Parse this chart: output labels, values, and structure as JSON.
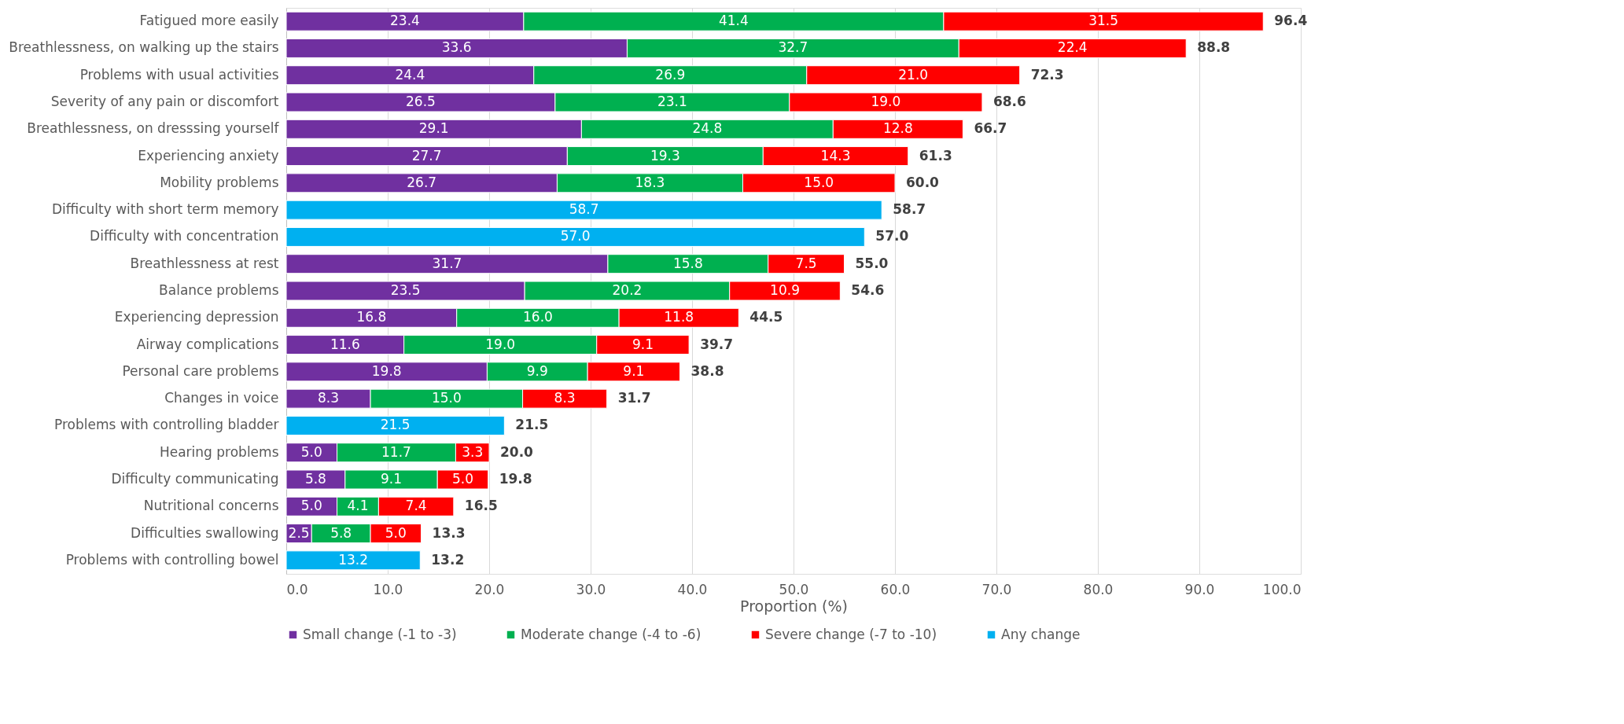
{
  "chart_data": {
    "type": "bar",
    "orientation": "horizontal",
    "stacked": true,
    "categories": [
      "Fatigued more easily",
      "Breathlessness, on walking up the stairs",
      "Problems with usual activities",
      "Severity of any pain or discomfort",
      "Breathlessness, on dresssing yourself",
      "Experiencing anxiety",
      "Mobility problems",
      "Difficulty with short term memory",
      "Difficulty with concentration",
      "Breathlessness at rest",
      "Balance problems",
      "Experiencing depression",
      "Airway complications",
      "Personal care problems",
      "Changes in voice",
      "Problems with controlling bladder",
      "Hearing problems",
      "Difficulty communicating",
      "Nutritional concerns",
      "Difficulties swallowing",
      "Problems with controlling bowel"
    ],
    "series": [
      {
        "name": "Small change (-1 to -3)",
        "color": "#7030a0",
        "values": [
          23.4,
          33.6,
          24.4,
          26.5,
          29.1,
          27.7,
          26.7,
          null,
          null,
          31.7,
          23.5,
          16.8,
          11.6,
          19.8,
          8.3,
          null,
          5.0,
          5.8,
          5.0,
          2.5,
          null
        ],
        "value_labels": [
          "23.4",
          "33.6",
          "24.4",
          "26.5",
          "29.1",
          "27.7",
          "26.7",
          null,
          null,
          "31.7",
          "23.5",
          "16.8",
          "11.6",
          "19.8",
          "8.3",
          null,
          "5.0",
          "5.8",
          "5.0",
          "2.5",
          null
        ]
      },
      {
        "name": "Moderate change (-4 to -6)",
        "color": "#00b050",
        "values": [
          41.4,
          32.7,
          26.9,
          23.1,
          24.8,
          19.3,
          18.3,
          null,
          null,
          15.8,
          20.2,
          16.0,
          19.0,
          9.9,
          15.0,
          null,
          11.7,
          9.1,
          4.1,
          5.8,
          null
        ],
        "value_labels": [
          "41.4",
          "32.7",
          "26.9",
          "23.1",
          "24.8",
          "19.3",
          "18.3",
          null,
          null,
          "15.8",
          "20.2",
          "16.0",
          "19.0",
          "9.9",
          "15.0",
          null,
          "11.7",
          "9.1",
          "4.1",
          "5.8",
          null
        ]
      },
      {
        "name": "Severe change (-7 to -10)",
        "color": "#ff0000",
        "values": [
          31.5,
          22.4,
          21.0,
          19.0,
          12.8,
          14.3,
          15.0,
          null,
          null,
          7.5,
          10.9,
          11.8,
          9.1,
          9.1,
          8.3,
          null,
          3.3,
          5.0,
          7.4,
          5.0,
          null
        ],
        "value_labels": [
          "31.5",
          "22.4",
          "21.0",
          "19.0",
          "12.8",
          "14.3",
          "15.0",
          null,
          null,
          "7.5",
          "10.9",
          "11.8",
          "9.1",
          "9.1",
          "8.3",
          null,
          "3.3",
          "5.0",
          "7.4",
          "5.0",
          null
        ]
      },
      {
        "name": "Any change",
        "color": "#00b0f0",
        "values": [
          null,
          null,
          null,
          null,
          null,
          null,
          null,
          58.7,
          57.0,
          null,
          null,
          null,
          null,
          null,
          null,
          21.5,
          null,
          null,
          null,
          null,
          13.2
        ],
        "value_labels": [
          null,
          null,
          null,
          null,
          null,
          null,
          null,
          "58.7",
          "57.0",
          null,
          null,
          null,
          null,
          null,
          null,
          "21.5",
          null,
          null,
          null,
          null,
          "13.2"
        ]
      }
    ],
    "totals": [
      "96.4",
      "88.8",
      "72.3",
      "68.6",
      "66.7",
      "61.3",
      "60.0",
      "58.7",
      "57.0",
      "55.0",
      "54.6",
      "44.5",
      "39.7",
      "38.8",
      "31.7",
      "21.5",
      "20.0",
      "19.8",
      "16.5",
      "13.3",
      "13.2"
    ],
    "xlabel": "Proportion (%)",
    "xlim": [
      0,
      100
    ],
    "xticks": [
      {
        "value": 0,
        "label": "0.0"
      },
      {
        "value": 10,
        "label": "10.0"
      },
      {
        "value": 20,
        "label": "20.0"
      },
      {
        "value": 30,
        "label": "30.0"
      },
      {
        "value": 40,
        "label": "40.0"
      },
      {
        "value": 50,
        "label": "50.0"
      },
      {
        "value": 60,
        "label": "60.0"
      },
      {
        "value": 70,
        "label": "70.0"
      },
      {
        "value": 80,
        "label": "80.0"
      },
      {
        "value": 90,
        "label": "90.0"
      },
      {
        "value": 100,
        "label": "100.0"
      }
    ],
    "grid": "x",
    "legend": "bottom"
  }
}
